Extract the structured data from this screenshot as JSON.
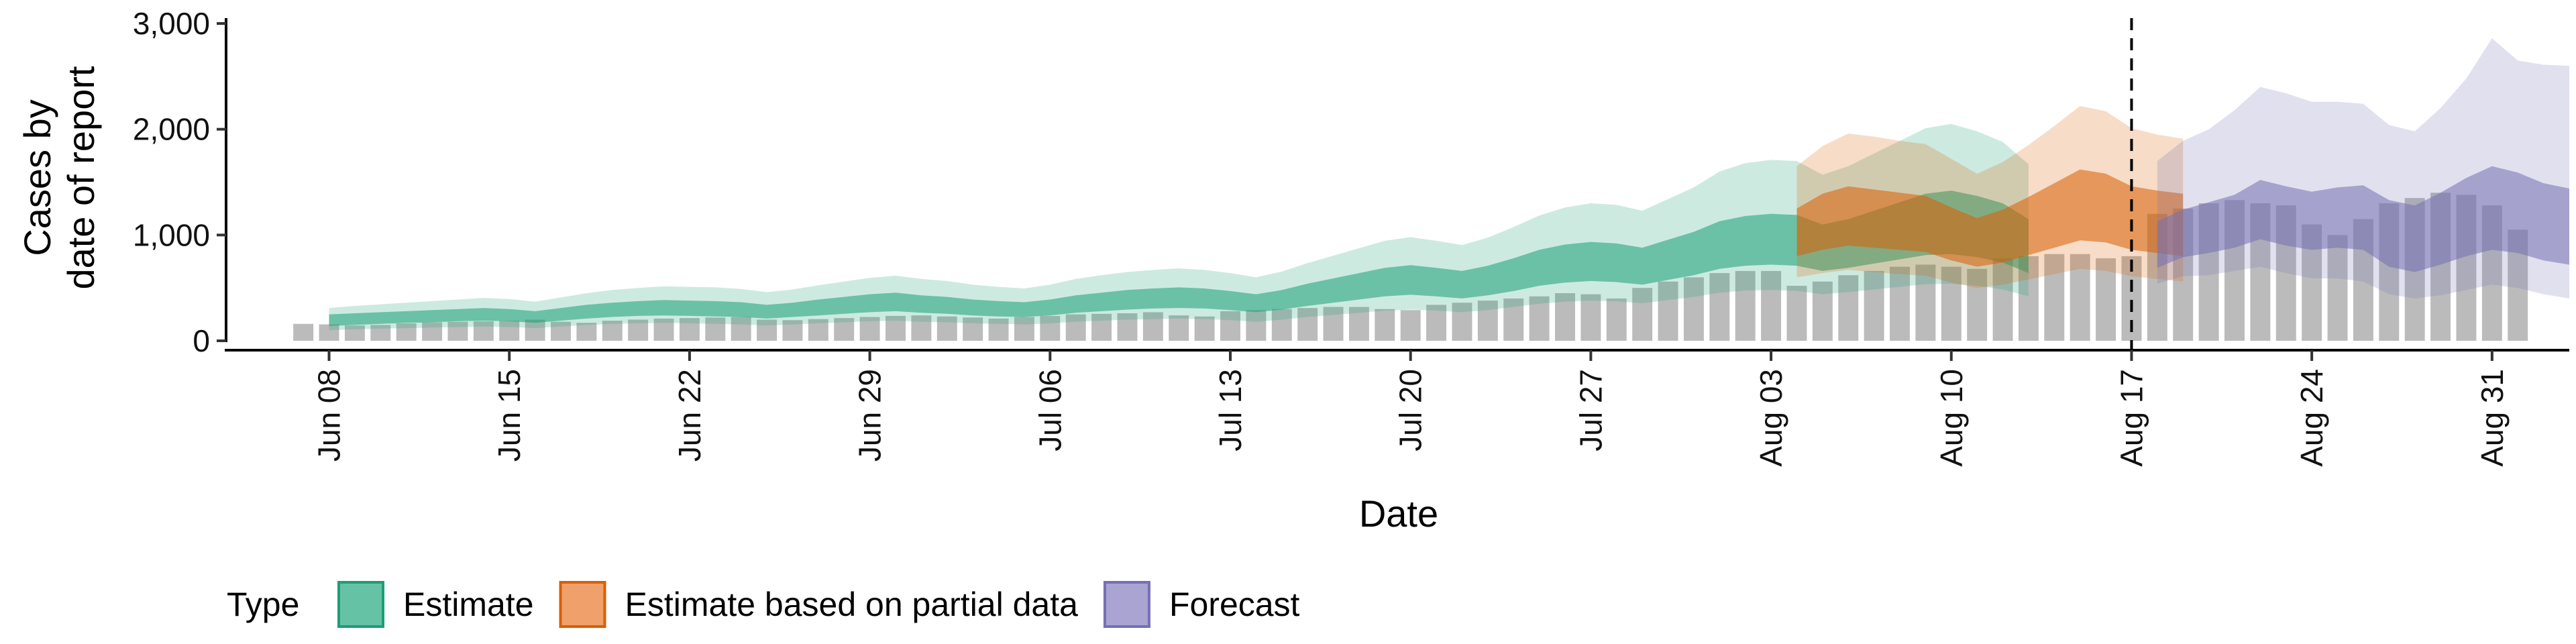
{
  "chart_data": {
    "type": "area",
    "xlabel": "Date",
    "ylabel_lines": [
      "Cases by",
      "date of report"
    ],
    "x_range": [
      "2020-06-04",
      "2020-09-03"
    ],
    "ylim": [
      0,
      3000
    ],
    "yticks": [
      {
        "value": 0,
        "label": "0"
      },
      {
        "value": 1000,
        "label": "1,000"
      },
      {
        "value": 2000,
        "label": "2,000"
      },
      {
        "value": 3000,
        "label": "3,000"
      }
    ],
    "xticks": [
      {
        "date": "2020-06-08",
        "label": "Jun 08"
      },
      {
        "date": "2020-06-15",
        "label": "Jun 15"
      },
      {
        "date": "2020-06-22",
        "label": "Jun 22"
      },
      {
        "date": "2020-06-29",
        "label": "Jun 29"
      },
      {
        "date": "2020-07-06",
        "label": "Jul 06"
      },
      {
        "date": "2020-07-13",
        "label": "Jul 13"
      },
      {
        "date": "2020-07-20",
        "label": "Jul 20"
      },
      {
        "date": "2020-07-27",
        "label": "Jul 27"
      },
      {
        "date": "2020-08-03",
        "label": "Aug 03"
      },
      {
        "date": "2020-08-10",
        "label": "Aug 10"
      },
      {
        "date": "2020-08-17",
        "label": "Aug 17"
      },
      {
        "date": "2020-08-24",
        "label": "Aug 24"
      },
      {
        "date": "2020-08-31",
        "label": "Aug 31"
      }
    ],
    "vline_date": "2020-08-17",
    "legend": {
      "title": "Type",
      "position": "bottom",
      "entries": [
        {
          "label": "Estimate",
          "fill": "#66c2a5",
          "stroke": "#1b9e77"
        },
        {
          "label": "Estimate based on partial data",
          "fill": "#f0a06a",
          "stroke": "#d95f02"
        },
        {
          "label": "Forecast",
          "fill": "#a9a4d2",
          "stroke": "#7570b3"
        }
      ]
    },
    "reported_cases": {
      "color": "#9e9e9e",
      "start_date": "2020-06-07",
      "values": [
        160,
        155,
        145,
        150,
        165,
        175,
        180,
        185,
        190,
        200,
        180,
        170,
        190,
        200,
        210,
        215,
        220,
        225,
        200,
        195,
        205,
        215,
        225,
        235,
        240,
        230,
        220,
        210,
        225,
        235,
        250,
        255,
        260,
        270,
        240,
        230,
        280,
        290,
        300,
        310,
        320,
        320,
        300,
        290,
        340,
        360,
        380,
        400,
        420,
        450,
        440,
        400,
        500,
        560,
        600,
        640,
        660,
        660,
        520,
        560,
        620,
        660,
        700,
        720,
        700,
        680,
        780,
        800,
        820,
        820,
        780,
        800,
        1200,
        1250,
        1300,
        1330,
        1300,
        1280,
        1100,
        1000,
        1150,
        1300,
        1350,
        1400,
        1380,
        1280,
        1050
      ]
    },
    "series": [
      {
        "name": "Estimate",
        "start_date": "2020-06-08",
        "color": "#1b9e77",
        "median": [
          180,
          190,
          200,
          210,
          220,
          230,
          240,
          230,
          210,
          240,
          260,
          280,
          290,
          300,
          295,
          290,
          280,
          260,
          280,
          300,
          320,
          340,
          350,
          330,
          320,
          300,
          290,
          280,
          300,
          330,
          350,
          370,
          380,
          390,
          380,
          360,
          340,
          370,
          420,
          460,
          500,
          540,
          560,
          540,
          520,
          560,
          620,
          680,
          720,
          740,
          730,
          700,
          760,
          820,
          900,
          940,
          960,
          950,
          880,
          920,
          980,
          1040,
          1100,
          1120,
          1080,
          1020,
          900
        ],
        "inner": [
          [
            140,
            250
          ],
          [
            150,
            260
          ],
          [
            160,
            270
          ],
          [
            170,
            280
          ],
          [
            175,
            290
          ],
          [
            185,
            300
          ],
          [
            190,
            310
          ],
          [
            185,
            300
          ],
          [
            170,
            280
          ],
          [
            190,
            310
          ],
          [
            210,
            340
          ],
          [
            225,
            360
          ],
          [
            235,
            375
          ],
          [
            240,
            385
          ],
          [
            235,
            380
          ],
          [
            230,
            375
          ],
          [
            225,
            365
          ],
          [
            210,
            340
          ],
          [
            225,
            360
          ],
          [
            240,
            390
          ],
          [
            255,
            415
          ],
          [
            270,
            440
          ],
          [
            280,
            455
          ],
          [
            265,
            430
          ],
          [
            255,
            415
          ],
          [
            240,
            390
          ],
          [
            230,
            375
          ],
          [
            225,
            365
          ],
          [
            240,
            390
          ],
          [
            265,
            430
          ],
          [
            280,
            455
          ],
          [
            295,
            480
          ],
          [
            305,
            495
          ],
          [
            310,
            505
          ],
          [
            305,
            495
          ],
          [
            290,
            470
          ],
          [
            270,
            440
          ],
          [
            295,
            480
          ],
          [
            330,
            540
          ],
          [
            360,
            590
          ],
          [
            390,
            640
          ],
          [
            420,
            690
          ],
          [
            435,
            715
          ],
          [
            420,
            690
          ],
          [
            400,
            660
          ],
          [
            430,
            710
          ],
          [
            470,
            780
          ],
          [
            520,
            860
          ],
          [
            550,
            910
          ],
          [
            565,
            935
          ],
          [
            555,
            920
          ],
          [
            530,
            880
          ],
          [
            575,
            955
          ],
          [
            620,
            1030
          ],
          [
            680,
            1130
          ],
          [
            710,
            1180
          ],
          [
            720,
            1200
          ],
          [
            710,
            1190
          ],
          [
            660,
            1100
          ],
          [
            690,
            1150
          ],
          [
            730,
            1230
          ],
          [
            770,
            1310
          ],
          [
            810,
            1390
          ],
          [
            820,
            1420
          ],
          [
            790,
            1370
          ],
          [
            740,
            1300
          ],
          [
            640,
            1150
          ]
        ],
        "outer": [
          [
            100,
            310
          ],
          [
            110,
            330
          ],
          [
            115,
            345
          ],
          [
            120,
            360
          ],
          [
            125,
            375
          ],
          [
            130,
            390
          ],
          [
            135,
            405
          ],
          [
            130,
            395
          ],
          [
            120,
            370
          ],
          [
            135,
            410
          ],
          [
            150,
            450
          ],
          [
            160,
            480
          ],
          [
            165,
            500
          ],
          [
            170,
            515
          ],
          [
            165,
            510
          ],
          [
            160,
            505
          ],
          [
            155,
            490
          ],
          [
            145,
            460
          ],
          [
            155,
            485
          ],
          [
            165,
            525
          ],
          [
            175,
            560
          ],
          [
            185,
            595
          ],
          [
            190,
            615
          ],
          [
            180,
            585
          ],
          [
            175,
            565
          ],
          [
            165,
            530
          ],
          [
            160,
            510
          ],
          [
            155,
            495
          ],
          [
            165,
            530
          ],
          [
            180,
            585
          ],
          [
            190,
            620
          ],
          [
            200,
            650
          ],
          [
            205,
            670
          ],
          [
            210,
            685
          ],
          [
            205,
            670
          ],
          [
            195,
            640
          ],
          [
            180,
            600
          ],
          [
            200,
            655
          ],
          [
            225,
            735
          ],
          [
            245,
            805
          ],
          [
            265,
            875
          ],
          [
            285,
            945
          ],
          [
            295,
            980
          ],
          [
            285,
            945
          ],
          [
            270,
            905
          ],
          [
            290,
            975
          ],
          [
            320,
            1075
          ],
          [
            350,
            1185
          ],
          [
            370,
            1260
          ],
          [
            380,
            1300
          ],
          [
            372,
            1285
          ],
          [
            355,
            1230
          ],
          [
            385,
            1340
          ],
          [
            415,
            1450
          ],
          [
            455,
            1600
          ],
          [
            475,
            1680
          ],
          [
            480,
            1710
          ],
          [
            472,
            1700
          ],
          [
            440,
            1570
          ],
          [
            460,
            1650
          ],
          [
            485,
            1770
          ],
          [
            510,
            1890
          ],
          [
            535,
            2010
          ],
          [
            540,
            2050
          ],
          [
            520,
            1980
          ],
          [
            485,
            1880
          ],
          [
            420,
            1670
          ]
        ]
      },
      {
        "name": "Estimate based on partial data",
        "start_date": "2020-08-04",
        "color": "#d95f02",
        "median": [
          1000,
          1100,
          1150,
          1120,
          1100,
          1080,
          980,
          900,
          960,
          1050,
          1150,
          1250,
          1220,
          1130,
          1090,
          1060
        ],
        "inner": [
          [
            800,
            1250
          ],
          [
            860,
            1390
          ],
          [
            900,
            1460
          ],
          [
            880,
            1430
          ],
          [
            860,
            1400
          ],
          [
            840,
            1370
          ],
          [
            760,
            1260
          ],
          [
            700,
            1160
          ],
          [
            740,
            1240
          ],
          [
            810,
            1360
          ],
          [
            880,
            1490
          ],
          [
            950,
            1620
          ],
          [
            930,
            1580
          ],
          [
            860,
            1460
          ],
          [
            830,
            1420
          ],
          [
            800,
            1390
          ]
        ],
        "outer": [
          [
            600,
            1650
          ],
          [
            640,
            1840
          ],
          [
            670,
            1960
          ],
          [
            650,
            1930
          ],
          [
            630,
            1890
          ],
          [
            615,
            1860
          ],
          [
            550,
            1720
          ],
          [
            500,
            1580
          ],
          [
            530,
            1690
          ],
          [
            580,
            1850
          ],
          [
            630,
            2030
          ],
          [
            680,
            2220
          ],
          [
            660,
            2170
          ],
          [
            610,
            2010
          ],
          [
            585,
            1950
          ],
          [
            560,
            1910
          ]
        ]
      },
      {
        "name": "Forecast",
        "start_date": "2020-08-18",
        "color": "#7570b3",
        "median": [
          900,
          1000,
          1050,
          1100,
          1200,
          1150,
          1100,
          1150,
          1150,
          1000,
          950,
          1050,
          1150,
          1250,
          1200,
          1100,
          1050
        ],
        "inner": [
          [
            690,
            1130
          ],
          [
            790,
            1240
          ],
          [
            830,
            1310
          ],
          [
            880,
            1380
          ],
          [
            960,
            1520
          ],
          [
            900,
            1460
          ],
          [
            860,
            1410
          ],
          [
            880,
            1450
          ],
          [
            860,
            1470
          ],
          [
            700,
            1330
          ],
          [
            650,
            1280
          ],
          [
            720,
            1400
          ],
          [
            800,
            1540
          ],
          [
            860,
            1650
          ],
          [
            830,
            1590
          ],
          [
            760,
            1490
          ],
          [
            720,
            1440
          ]
        ],
        "outer": [
          [
            540,
            1700
          ],
          [
            610,
            1890
          ],
          [
            620,
            2000
          ],
          [
            660,
            2180
          ],
          [
            700,
            2400
          ],
          [
            640,
            2340
          ],
          [
            590,
            2260
          ],
          [
            590,
            2260
          ],
          [
            560,
            2240
          ],
          [
            440,
            2040
          ],
          [
            400,
            1980
          ],
          [
            430,
            2200
          ],
          [
            480,
            2480
          ],
          [
            530,
            2860
          ],
          [
            500,
            2650
          ],
          [
            440,
            2610
          ],
          [
            400,
            2600
          ]
        ]
      }
    ]
  }
}
